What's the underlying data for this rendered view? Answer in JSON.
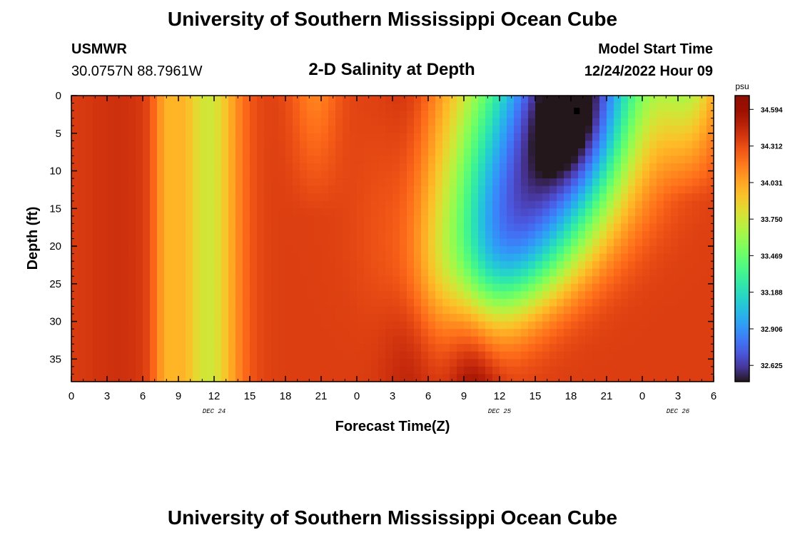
{
  "header": {
    "title": "University of Southern Mississippi Ocean Cube",
    "station": "USMWR",
    "coords": "30.0757N  88.7961W",
    "model_start_label": "Model Start Time",
    "model_start_value": "12/24/2022 Hour 09",
    "footer_title": "University of Southern Mississippi Ocean Cube"
  },
  "chart_data": {
    "type": "heatmap",
    "title": "2-D Salinity at Depth",
    "xlabel": "Forecast Time(Z)",
    "ylabel": "Depth (ft)",
    "x_tick_labels": [
      "0",
      "3",
      "6",
      "9",
      "12",
      "15",
      "18",
      "21",
      "0",
      "3",
      "6",
      "9",
      "12",
      "15",
      "18",
      "21",
      "0",
      "3",
      "6"
    ],
    "x_range_hours": [
      0,
      54
    ],
    "date_labels": [
      {
        "label": "DEC 24",
        "hour": 12
      },
      {
        "label": "DEC 25",
        "hour": 36
      },
      {
        "label": "DEC 26",
        "hour": 51
      }
    ],
    "y_tick_labels": [
      "0",
      "5",
      "10",
      "15",
      "20",
      "25",
      "30",
      "35"
    ],
    "y_range_ft": [
      0,
      38
    ],
    "y_inverted": true,
    "colorbar": {
      "unit": "psu",
      "min": 32.5,
      "max": 34.7,
      "tick_labels": [
        "34.594",
        "34.312",
        "34.031",
        "33.750",
        "33.469",
        "33.188",
        "32.906",
        "32.625"
      ],
      "colormap": "turbo"
    },
    "grid_resolution": {
      "columns": 90,
      "rows": 38
    },
    "marker": {
      "hour": 42.5,
      "depth_ft": 2,
      "color": "#000000"
    }
  }
}
